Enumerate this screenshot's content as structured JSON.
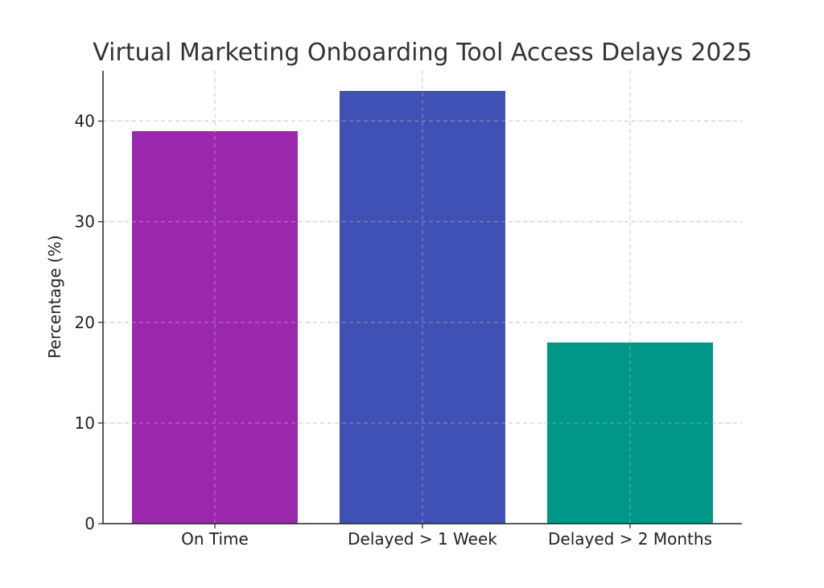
{
  "chart_data": {
    "type": "bar",
    "title": "Virtual Marketing Onboarding Tool Access Delays 2025",
    "xlabel": "",
    "ylabel": "Percentage (%)",
    "categories": [
      "On Time",
      "Delayed > 1 Week",
      "Delayed > 2 Months"
    ],
    "values": [
      39,
      43,
      18
    ],
    "colors": [
      "#9b27af",
      "#3f51b5",
      "#009688"
    ],
    "ylim": [
      0,
      45
    ],
    "yticks": [
      0,
      10,
      20,
      30,
      40
    ],
    "grid": true,
    "legend": "none"
  }
}
